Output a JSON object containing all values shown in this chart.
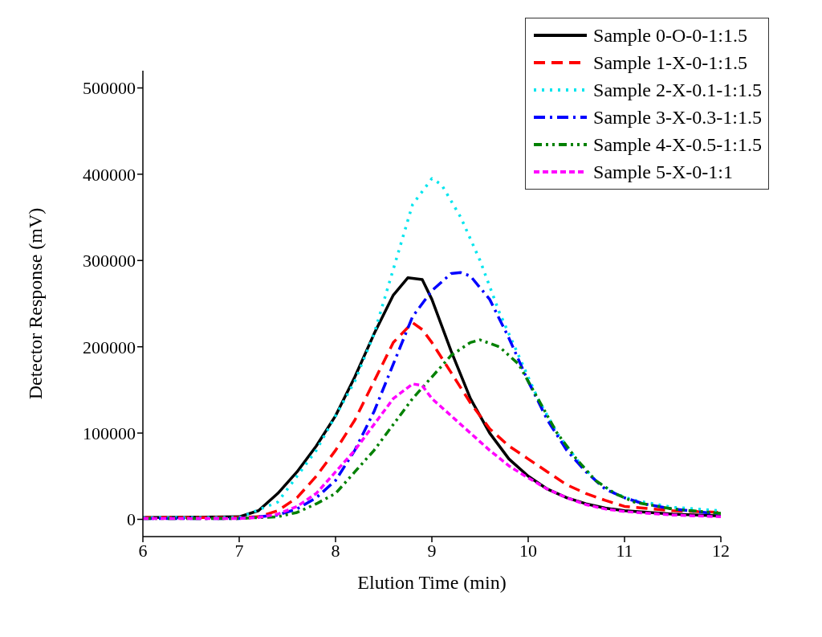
{
  "chart_data": {
    "type": "line",
    "xlabel": "Elution Time (min)",
    "ylabel": "Detector Response (mV)",
    "xlim": [
      6,
      12
    ],
    "xticks": [
      6,
      7,
      8,
      9,
      10,
      11,
      12
    ],
    "ylim": [
      -20000,
      520000
    ],
    "yticks": [
      0,
      100000,
      200000,
      300000,
      400000,
      500000
    ],
    "legend": "top right",
    "marker": "none",
    "series": [
      {
        "name": "Sample 0-O-0-1:1.5",
        "color": "#000000",
        "line_style": "solid",
        "x": [
          6,
          7,
          7.2,
          7.4,
          7.6,
          7.8,
          8,
          8.2,
          8.4,
          8.6,
          8.75,
          8.9,
          9,
          9.2,
          9.4,
          9.6,
          9.8,
          10,
          10.2,
          10.4,
          10.6,
          10.8,
          11,
          11.5,
          12
        ],
        "values": [
          2000,
          3000,
          10000,
          30000,
          55000,
          85000,
          120000,
          165000,
          215000,
          260000,
          280000,
          278000,
          255000,
          195000,
          140000,
          100000,
          70000,
          50000,
          35000,
          25000,
          18000,
          13000,
          10000,
          6000,
          4000
        ]
      },
      {
        "name": "Sample 1-X-0-1:1.5",
        "color": "#ff0000",
        "line_style": "dashed",
        "x": [
          6,
          7,
          7.2,
          7.4,
          7.6,
          7.8,
          8,
          8.2,
          8.4,
          8.6,
          8.8,
          8.9,
          9,
          9.2,
          9.4,
          9.6,
          9.8,
          10,
          10.2,
          10.4,
          10.6,
          10.8,
          11,
          11.5,
          12
        ],
        "values": [
          2000,
          2000,
          3000,
          10000,
          25000,
          50000,
          80000,
          115000,
          160000,
          205000,
          228000,
          220000,
          205000,
          170000,
          135000,
          105000,
          85000,
          70000,
          55000,
          40000,
          30000,
          22000,
          15000,
          10000,
          8000
        ]
      },
      {
        "name": "Sample 2-X-0.1-1:1.5",
        "color": "#00e5ee",
        "line_style": "dotted",
        "x": [
          6,
          7,
          7.4,
          7.6,
          7.8,
          8,
          8.2,
          8.4,
          8.6,
          8.8,
          9,
          9.1,
          9.3,
          9.5,
          9.7,
          9.9,
          10.1,
          10.3,
          10.5,
          10.7,
          10.9,
          11.1,
          11.5,
          12
        ],
        "values": [
          2000,
          2000,
          20000,
          50000,
          80000,
          120000,
          160000,
          215000,
          290000,
          365000,
          395000,
          388000,
          350000,
          300000,
          240000,
          190000,
          140000,
          100000,
          70000,
          45000,
          30000,
          22000,
          14000,
          10000
        ]
      },
      {
        "name": "Sample 3-X-0.3-1:1.5",
        "color": "#0000ff",
        "line_style": "dashdot",
        "x": [
          6,
          7,
          7.4,
          7.6,
          7.8,
          8,
          8.2,
          8.4,
          8.6,
          8.8,
          9,
          9.2,
          9.3,
          9.4,
          9.6,
          9.8,
          10,
          10.2,
          10.4,
          10.6,
          10.8,
          11,
          11.2,
          11.5,
          12
        ],
        "values": [
          1000,
          1000,
          5000,
          12000,
          25000,
          45000,
          80000,
          125000,
          180000,
          235000,
          265000,
          285000,
          286000,
          282000,
          255000,
          210000,
          160000,
          115000,
          80000,
          55000,
          35000,
          25000,
          18000,
          12000,
          6000
        ]
      },
      {
        "name": "Sample 4-X-0.5-1:1.5",
        "color": "#008000",
        "line_style": "dashdotdot",
        "x": [
          6,
          7,
          7.4,
          7.6,
          7.8,
          8,
          8.2,
          8.4,
          8.6,
          8.8,
          9,
          9.2,
          9.4,
          9.5,
          9.7,
          9.9,
          10.1,
          10.3,
          10.5,
          10.7,
          10.9,
          11.1,
          11.5,
          12
        ],
        "values": [
          1000,
          1000,
          3000,
          8000,
          18000,
          30000,
          55000,
          80000,
          110000,
          140000,
          165000,
          190000,
          205000,
          208000,
          200000,
          180000,
          140000,
          100000,
          70000,
          45000,
          30000,
          20000,
          12000,
          7000
        ]
      },
      {
        "name": "Sample 5-X-0-1:1",
        "color": "#ff00ff",
        "line_style": "shortdash",
        "x": [
          6,
          7,
          7.2,
          7.4,
          7.6,
          7.8,
          8,
          8.2,
          8.4,
          8.6,
          8.8,
          8.9,
          9,
          9.2,
          9.4,
          9.6,
          9.8,
          10,
          10.2,
          10.4,
          10.6,
          10.8,
          11,
          11.5,
          12
        ],
        "values": [
          1000,
          1000,
          2000,
          6000,
          15000,
          30000,
          55000,
          80000,
          110000,
          140000,
          157000,
          155000,
          140000,
          120000,
          100000,
          80000,
          62000,
          48000,
          35000,
          25000,
          17000,
          12000,
          9000,
          5000,
          3000
        ]
      }
    ]
  }
}
